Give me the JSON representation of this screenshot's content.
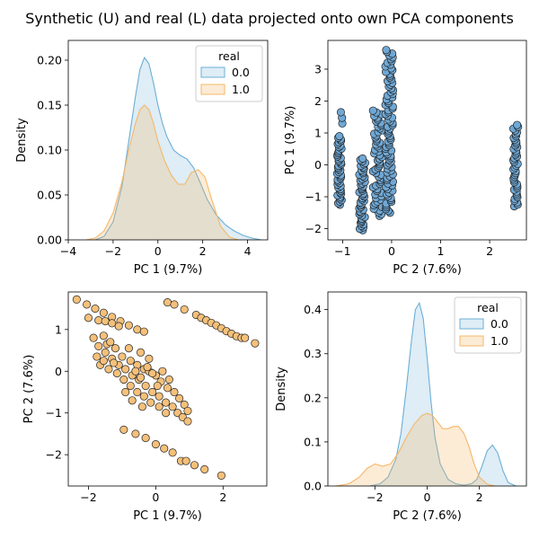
{
  "figure_title": "Synthetic (U) and real (L) data projected onto own PCA components",
  "colors": {
    "blue_fill": "#6baed6",
    "blue_line": "#6baed6",
    "orange_fill": "#fdd49e",
    "orange_line": "#f5b769",
    "point_blue": "#6fa8d6",
    "point_orange": "#f4c07a"
  },
  "chart_data": [
    {
      "type": "area",
      "panel": "top-left",
      "xlabel": "PC 1 (9.7%)",
      "ylabel": "Density",
      "xlim": [
        -4,
        4.9
      ],
      "ylim": [
        0,
        0.222
      ],
      "xticks": [
        -4,
        -2,
        0,
        2,
        4
      ],
      "yticks": [
        0.0,
        0.05,
        0.1,
        0.15,
        0.2
      ],
      "ytick_labels": [
        "0.00",
        "0.05",
        "0.10",
        "0.15",
        "0.20"
      ],
      "legend": {
        "title": "real",
        "entries": [
          "0.0",
          "1.0"
        ],
        "placement": "top-right"
      },
      "series": [
        {
          "name": "0.0",
          "color": "#6baed6",
          "x": [
            -2.8,
            -2.4,
            -2.0,
            -1.6,
            -1.3,
            -1.0,
            -0.8,
            -0.6,
            -0.4,
            -0.2,
            0.0,
            0.2,
            0.4,
            0.7,
            1.0,
            1.3,
            1.6,
            1.9,
            2.2,
            2.6,
            3.0,
            3.4,
            3.8,
            4.2,
            4.6
          ],
          "y": [
            0.0,
            0.004,
            0.02,
            0.06,
            0.11,
            0.16,
            0.19,
            0.203,
            0.196,
            0.175,
            0.15,
            0.13,
            0.115,
            0.1,
            0.094,
            0.09,
            0.08,
            0.063,
            0.045,
            0.028,
            0.017,
            0.01,
            0.005,
            0.002,
            0.0
          ]
        },
        {
          "name": "1.0",
          "color": "#f5b769",
          "x": [
            -3.2,
            -2.8,
            -2.4,
            -2.0,
            -1.6,
            -1.3,
            -1.0,
            -0.8,
            -0.6,
            -0.4,
            -0.2,
            0.0,
            0.3,
            0.6,
            0.9,
            1.2,
            1.5,
            1.8,
            2.1,
            2.4,
            2.8,
            3.2,
            3.6
          ],
          "y": [
            0.0,
            0.002,
            0.01,
            0.03,
            0.065,
            0.1,
            0.13,
            0.145,
            0.15,
            0.145,
            0.13,
            0.11,
            0.088,
            0.072,
            0.062,
            0.062,
            0.075,
            0.078,
            0.07,
            0.045,
            0.015,
            0.003,
            0.0
          ]
        }
      ]
    },
    {
      "type": "scatter",
      "panel": "top-right",
      "xlabel": "PC 2 (7.6%)",
      "ylabel": "PC 1 (9.7%)",
      "xlim": [
        -1.3,
        2.75
      ],
      "ylim": [
        -2.35,
        3.9
      ],
      "xticks": [
        -1,
        0,
        1,
        2
      ],
      "yticks": [
        -2,
        -1,
        0,
        1,
        2,
        3
      ],
      "color": "#6fa8d6",
      "clusters": [
        {
          "x_center": -1.07,
          "x_jitter": 0.05,
          "y_min": -1.25,
          "y_max": 0.9,
          "n": 45
        },
        {
          "x_center": -1.02,
          "x_jitter": 0.02,
          "y_min": 1.3,
          "y_max": 1.65,
          "n": 3
        },
        {
          "x_center": -0.6,
          "x_jitter": 0.06,
          "y_min": -2.05,
          "y_max": 0.2,
          "n": 50
        },
        {
          "x_center": -0.28,
          "x_jitter": 0.1,
          "y_min": -1.6,
          "y_max": 1.7,
          "n": 60
        },
        {
          "x_center": -0.05,
          "x_jitter": 0.08,
          "y_min": -1.5,
          "y_max": 3.6,
          "n": 90
        },
        {
          "x_center": 2.53,
          "x_jitter": 0.05,
          "y_min": -1.3,
          "y_max": 1.25,
          "n": 45
        }
      ]
    },
    {
      "type": "scatter",
      "panel": "bottom-left",
      "xlabel": "PC 1 (9.7%)",
      "ylabel": "PC 2 (7.6%)",
      "xlim": [
        -2.6,
        3.3
      ],
      "ylim": [
        -2.75,
        1.9
      ],
      "xticks": [
        -2,
        0,
        2
      ],
      "yticks": [
        -2,
        -1,
        0,
        1
      ],
      "color": "#f4c07a",
      "points": [
        [
          -2.35,
          1.72
        ],
        [
          -2.05,
          1.6
        ],
        [
          -1.8,
          1.5
        ],
        [
          -1.55,
          1.4
        ],
        [
          -1.3,
          1.3
        ],
        [
          -1.05,
          1.2
        ],
        [
          -0.8,
          1.1
        ],
        [
          -0.55,
          1.0
        ],
        [
          -0.35,
          0.95
        ],
        [
          -2.0,
          1.28
        ],
        [
          -1.7,
          1.22
        ],
        [
          -1.5,
          1.2
        ],
        [
          -1.3,
          1.15
        ],
        [
          -1.1,
          1.08
        ],
        [
          0.35,
          1.65
        ],
        [
          0.55,
          1.6
        ],
        [
          0.85,
          1.48
        ],
        [
          1.2,
          1.35
        ],
        [
          1.35,
          1.28
        ],
        [
          1.5,
          1.22
        ],
        [
          1.65,
          1.16
        ],
        [
          1.8,
          1.1
        ],
        [
          1.95,
          1.03
        ],
        [
          2.1,
          0.96
        ],
        [
          2.25,
          0.9
        ],
        [
          2.4,
          0.84
        ],
        [
          2.55,
          0.8
        ],
        [
          2.65,
          0.8
        ],
        [
          2.95,
          0.67
        ],
        [
          -1.45,
          0.65
        ],
        [
          -1.2,
          0.55
        ],
        [
          -1.0,
          0.35
        ],
        [
          -0.75,
          0.25
        ],
        [
          -0.55,
          0.15
        ],
        [
          -0.35,
          0.05
        ],
        [
          -0.2,
          0.0
        ],
        [
          0.0,
          -0.1
        ],
        [
          0.15,
          -0.25
        ],
        [
          0.35,
          -0.4
        ],
        [
          0.55,
          -0.5
        ],
        [
          0.7,
          -0.65
        ],
        [
          0.85,
          -0.8
        ],
        [
          0.95,
          -0.95
        ],
        [
          -1.7,
          0.6
        ],
        [
          -1.5,
          0.45
        ],
        [
          -1.3,
          0.3
        ],
        [
          -1.1,
          0.15
        ],
        [
          -0.9,
          0.05
        ],
        [
          -0.7,
          -0.1
        ],
        [
          -0.5,
          -0.2
        ],
        [
          -0.3,
          -0.35
        ],
        [
          -0.1,
          -0.5
        ],
        [
          0.1,
          -0.6
        ],
        [
          0.3,
          -0.75
        ],
        [
          0.5,
          -0.85
        ],
        [
          0.65,
          -1.0
        ],
        [
          0.8,
          -1.1
        ],
        [
          0.95,
          -1.2
        ],
        [
          -1.65,
          0.15
        ],
        [
          -1.4,
          0.05
        ],
        [
          -1.15,
          -0.05
        ],
        [
          -0.95,
          -0.2
        ],
        [
          -0.75,
          -0.35
        ],
        [
          -0.55,
          -0.5
        ],
        [
          -0.35,
          -0.6
        ],
        [
          -0.15,
          -0.75
        ],
        [
          0.1,
          -0.85
        ],
        [
          0.3,
          -1.0
        ],
        [
          -1.75,
          0.35
        ],
        [
          -1.55,
          0.25
        ],
        [
          -1.25,
          0.2
        ],
        [
          -0.6,
          0.0
        ],
        [
          -0.45,
          -0.15
        ],
        [
          -0.25,
          0.1
        ],
        [
          -0.1,
          -0.05
        ],
        [
          0.2,
          0.0
        ],
        [
          0.4,
          -0.2
        ],
        [
          -0.9,
          -0.5
        ],
        [
          -0.7,
          -0.7
        ],
        [
          -0.4,
          -0.85
        ],
        [
          -0.2,
          0.3
        ],
        [
          -1.85,
          0.8
        ],
        [
          -1.55,
          0.85
        ],
        [
          -1.35,
          0.7
        ],
        [
          -0.8,
          0.55
        ],
        [
          -0.45,
          0.45
        ],
        [
          0.05,
          -0.35
        ],
        [
          -0.95,
          -1.4
        ],
        [
          -0.6,
          -1.5
        ],
        [
          -0.3,
          -1.6
        ],
        [
          0.0,
          -1.75
        ],
        [
          0.25,
          -1.85
        ],
        [
          0.5,
          -1.95
        ],
        [
          0.75,
          -2.15
        ],
        [
          0.9,
          -2.15
        ],
        [
          1.15,
          -2.25
        ],
        [
          1.45,
          -2.35
        ],
        [
          1.95,
          -2.5
        ]
      ]
    },
    {
      "type": "area",
      "panel": "bottom-right",
      "xlabel": "PC 2 (7.6%)",
      "ylabel": "Density",
      "xlim": [
        -3.8,
        3.8
      ],
      "ylim": [
        0,
        0.44
      ],
      "xticks": [
        -2,
        0,
        2
      ],
      "yticks": [
        0.0,
        0.1,
        0.2,
        0.3,
        0.4
      ],
      "ytick_labels": [
        "0.0",
        "0.1",
        "0.2",
        "0.3",
        "0.4"
      ],
      "legend": {
        "title": "real",
        "entries": [
          "0.0",
          "1.0"
        ],
        "placement": "top-right"
      },
      "series": [
        {
          "name": "0.0",
          "color": "#6baed6",
          "x": [
            -2.2,
            -1.8,
            -1.5,
            -1.2,
            -1.0,
            -0.8,
            -0.6,
            -0.45,
            -0.3,
            -0.15,
            0.0,
            0.15,
            0.3,
            0.5,
            0.8,
            1.1,
            1.4,
            1.7,
            1.9,
            2.1,
            2.3,
            2.5,
            2.7,
            2.9,
            3.1,
            3.4
          ],
          "y": [
            0.0,
            0.005,
            0.02,
            0.06,
            0.12,
            0.22,
            0.33,
            0.4,
            0.415,
            0.38,
            0.29,
            0.19,
            0.11,
            0.05,
            0.015,
            0.005,
            0.002,
            0.005,
            0.015,
            0.045,
            0.08,
            0.093,
            0.075,
            0.035,
            0.008,
            0.0
          ]
        },
        {
          "name": "1.0",
          "color": "#f5b769",
          "x": [
            -3.5,
            -3.0,
            -2.6,
            -2.3,
            -2.0,
            -1.7,
            -1.4,
            -1.1,
            -0.8,
            -0.5,
            -0.2,
            0.0,
            0.2,
            0.4,
            0.6,
            0.8,
            1.0,
            1.2,
            1.4,
            1.6,
            1.8,
            2.0,
            2.3,
            2.6
          ],
          "y": [
            0.0,
            0.005,
            0.02,
            0.04,
            0.05,
            0.045,
            0.05,
            0.075,
            0.11,
            0.14,
            0.16,
            0.165,
            0.16,
            0.145,
            0.13,
            0.13,
            0.135,
            0.135,
            0.12,
            0.09,
            0.05,
            0.02,
            0.004,
            0.0
          ]
        }
      ]
    }
  ]
}
